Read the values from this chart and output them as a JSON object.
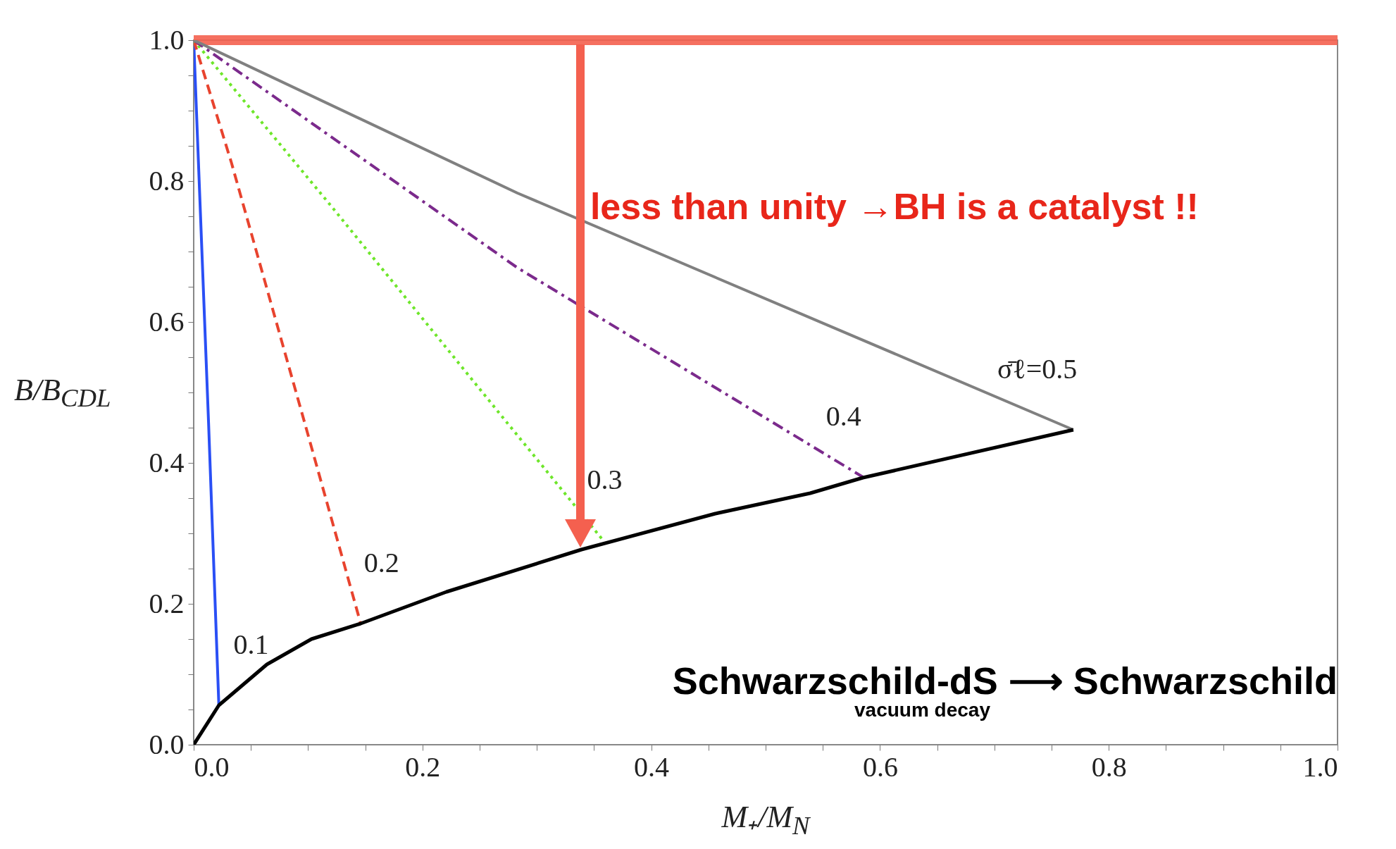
{
  "chart_data": {
    "type": "line",
    "xlabel": "M₊/M$_{N}$",
    "ylabel": "B/B$_{CDL}$",
    "xlim": [
      0,
      1
    ],
    "ylim": [
      0,
      1
    ],
    "xticks": [
      {
        "value": 0,
        "label": "0.0"
      },
      {
        "value": 0.05,
        "label": null
      },
      {
        "value": 0.1,
        "label": null
      },
      {
        "value": 0.15,
        "label": null
      },
      0.2,
      {
        "value": 0.25,
        "label": null
      },
      {
        "value": 0.3,
        "label": null
      },
      {
        "value": 0.35,
        "label": null
      },
      0.4,
      {
        "value": 0.45,
        "label": null
      },
      {
        "value": 0.5,
        "label": null
      },
      {
        "value": 0.55,
        "label": null
      },
      0.6,
      {
        "value": 0.65,
        "label": null
      },
      {
        "value": 0.7,
        "label": null
      },
      {
        "value": 0.75,
        "label": null
      },
      0.8,
      {
        "value": 0.85,
        "label": null
      },
      {
        "value": 0.9,
        "label": null
      },
      {
        "value": 0.95,
        "label": null
      },
      {
        "value": 1,
        "label": "1.0"
      }
    ],
    "yticks": [
      {
        "value": 0,
        "label": "0.0"
      },
      {
        "value": 0.05,
        "label": null
      },
      {
        "value": 0.1,
        "label": null
      },
      {
        "value": 0.15,
        "label": null
      },
      0.2,
      {
        "value": 0.25,
        "label": null
      },
      {
        "value": 0.3,
        "label": null
      },
      {
        "value": 0.35,
        "label": null
      },
      0.4,
      {
        "value": 0.45,
        "label": null
      },
      {
        "value": 0.5,
        "label": null
      },
      {
        "value": 0.55,
        "label": null
      },
      0.6,
      {
        "value": 0.65,
        "label": null
      },
      {
        "value": 0.7,
        "label": null
      },
      {
        "value": 0.75,
        "label": null
      },
      0.8,
      {
        "value": 0.85,
        "label": null
      },
      {
        "value": 0.9,
        "label": null
      },
      {
        "value": 0.95,
        "label": null
      },
      {
        "value": 1,
        "label": "1.0"
      }
    ],
    "series": [
      {
        "name": "0.1",
        "color": "#2a4ff5",
        "line_style": "solid",
        "x": [
          0,
          0.013,
          0.022
        ],
        "values": [
          1,
          0.457,
          0.056
        ]
      },
      {
        "name": "0.2",
        "color": "#e8432e",
        "line_style": "dashed",
        "x": [
          0,
          0.033,
          0.097,
          0.146
        ],
        "values": [
          1,
          0.826,
          0.457,
          0.172
        ]
      },
      {
        "name": "0.3",
        "color": "#6ee62a",
        "line_style": "dotted",
        "x": [
          0,
          0.121,
          0.268,
          0.358
        ],
        "values": [
          1,
          0.763,
          0.469,
          0.29
        ]
      },
      {
        "name": "0.4",
        "color": "#7b2a8c",
        "line_style": "dashdot",
        "x": [
          0,
          0.283,
          0.585
        ],
        "values": [
          1,
          0.677,
          0.38
        ]
      },
      {
        "name": "σ̄ℓ=0.5",
        "color": "#808080",
        "line_style": "solid",
        "x": [
          0,
          0.283,
          0.769
        ],
        "values": [
          1,
          0.783,
          0.447
        ]
      },
      {
        "color": "#000000",
        "line_style": "solid",
        "x": [
          0,
          0.022,
          0.064,
          0.103,
          0.146,
          0.221,
          0.339,
          0.456,
          0.539,
          0.585,
          0.769
        ],
        "values": [
          0,
          0.056,
          0.114,
          0.15,
          0.172,
          0.217,
          0.277,
          0.328,
          0.357,
          0.379,
          0.447
        ]
      }
    ],
    "ref_lines": [
      {
        "axis": "y",
        "value": 1,
        "color": "#f4604f"
      }
    ],
    "annotations": [
      "less than unity →BH is a catalyst !!",
      "Schwarzschild-dS ⟶ Schwarzschild",
      "vacuum decay"
    ]
  }
}
